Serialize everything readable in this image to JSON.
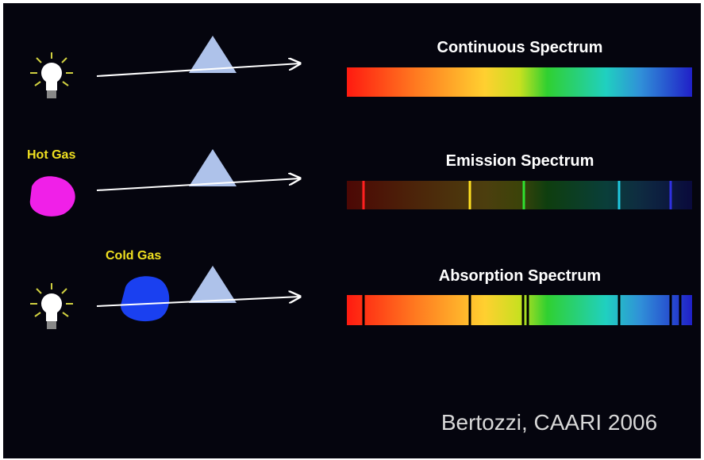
{
  "rows": [
    {
      "label": "Continuous Spectrum"
    },
    {
      "label": "Emission Spectrum",
      "gas": "Hot Gas"
    },
    {
      "label": "Absorption Spectrum",
      "gas": "Cold Gas"
    }
  ],
  "credit": "Bertozzi, CAARI 2006"
}
